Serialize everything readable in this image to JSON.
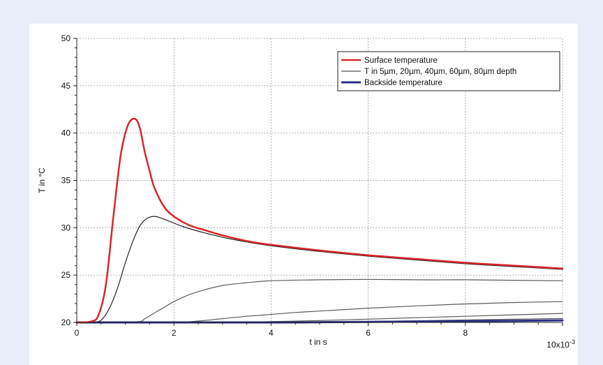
{
  "chart_data": {
    "type": "line",
    "title": "",
    "xlabel": "t in s",
    "ylabel": "T in °C",
    "x_multiplier_label": "10x10",
    "x_multiplier_exp": "-3",
    "xlim": [
      0,
      10
    ],
    "ylim": [
      20,
      50
    ],
    "x_ticks": [
      0,
      2,
      4,
      6,
      8
    ],
    "y_ticks": [
      20,
      25,
      30,
      35,
      40,
      45,
      50
    ],
    "grid": true,
    "legend_position": "top-right",
    "legend": [
      {
        "label": "Surface temperature",
        "color": "#d8262c",
        "width": 2.5
      },
      {
        "label": "T in 5µm, 20µm, 40µm, 60µm, 80µm depth",
        "color": "#555555",
        "width": 1.2
      },
      {
        "label": "Backside temperature",
        "color": "#2a2e86",
        "width": 3
      }
    ],
    "series": [
      {
        "name": "Surface temperature",
        "color": "#d8262c",
        "width": 2.5,
        "x": [
          0,
          0.3,
          0.45,
          0.6,
          0.75,
          0.9,
          1.05,
          1.2,
          1.3,
          1.4,
          1.5,
          1.6,
          1.8,
          2.0,
          2.3,
          2.6,
          3.0,
          3.5,
          4.0,
          5.0,
          6.0,
          7.0,
          8.0,
          9.0,
          10.0
        ],
        "y": [
          20,
          20.1,
          20.8,
          24.0,
          31.0,
          37.5,
          40.8,
          41.5,
          40.5,
          38.0,
          36.0,
          34.2,
          32.2,
          31.2,
          30.3,
          29.8,
          29.2,
          28.6,
          28.2,
          27.6,
          27.1,
          26.7,
          26.3,
          26.0,
          25.7
        ]
      },
      {
        "name": "T in 5µm, 20µm, 40µm, 60µm, 80µm depth",
        "color": "#222222",
        "width": 1.2,
        "x": [
          0,
          0.4,
          0.55,
          0.7,
          0.85,
          1.0,
          1.15,
          1.3,
          1.45,
          1.6,
          1.75,
          1.9,
          2.2,
          2.6,
          3.0,
          3.5,
          4.0,
          5.0,
          6.0,
          7.0,
          8.0,
          9.0,
          10.0
        ],
        "y": [
          20,
          20.05,
          20.5,
          21.8,
          23.8,
          26.3,
          28.5,
          30.2,
          31.0,
          31.2,
          31.0,
          30.7,
          30.1,
          29.5,
          29.0,
          28.5,
          28.1,
          27.5,
          27.0,
          26.6,
          26.2,
          25.9,
          25.6
        ]
      },
      {
        "name": "20µm depth",
        "color": "#5a5a5a",
        "width": 1.2,
        "x": [
          0,
          1.2,
          1.4,
          1.6,
          1.8,
          2.0,
          2.3,
          2.6,
          3.0,
          3.5,
          4.0,
          5.0,
          6.0,
          7.0,
          8.0,
          9.0,
          10.0
        ],
        "y": [
          20,
          20.05,
          20.4,
          21.0,
          21.6,
          22.2,
          22.9,
          23.4,
          23.9,
          24.2,
          24.4,
          24.5,
          24.55,
          24.5,
          24.5,
          24.45,
          24.4
        ]
      },
      {
        "name": "40µm depth",
        "color": "#5a5a5a",
        "width": 1.2,
        "x": [
          0,
          2.0,
          2.5,
          3.0,
          3.5,
          4.0,
          4.5,
          5.0,
          6.0,
          7.0,
          8.0,
          9.0,
          10.0
        ],
        "y": [
          20,
          20.03,
          20.15,
          20.4,
          20.65,
          20.85,
          21.05,
          21.2,
          21.5,
          21.75,
          21.95,
          22.1,
          22.2
        ]
      },
      {
        "name": "60µm depth",
        "color": "#5a5a5a",
        "width": 1.2,
        "x": [
          0,
          3.0,
          4.0,
          5.0,
          6.0,
          7.0,
          8.0,
          9.0,
          10.0
        ],
        "y": [
          20,
          20.02,
          20.08,
          20.2,
          20.35,
          20.5,
          20.65,
          20.8,
          20.95
        ]
      },
      {
        "name": "80µm depth",
        "color": "#5a5a5a",
        "width": 1.2,
        "x": [
          0,
          4.0,
          5.0,
          6.0,
          7.0,
          8.0,
          9.0,
          10.0
        ],
        "y": [
          20,
          20.01,
          20.04,
          20.1,
          20.18,
          20.26,
          20.34,
          20.42
        ]
      },
      {
        "name": "Backside temperature",
        "color": "#2a2e86",
        "width": 3,
        "x": [
          0,
          4.0,
          5.0,
          6.0,
          7.0,
          8.0,
          9.0,
          10.0
        ],
        "y": [
          20,
          20.0,
          20.02,
          20.05,
          20.09,
          20.13,
          20.17,
          20.22
        ]
      }
    ]
  }
}
